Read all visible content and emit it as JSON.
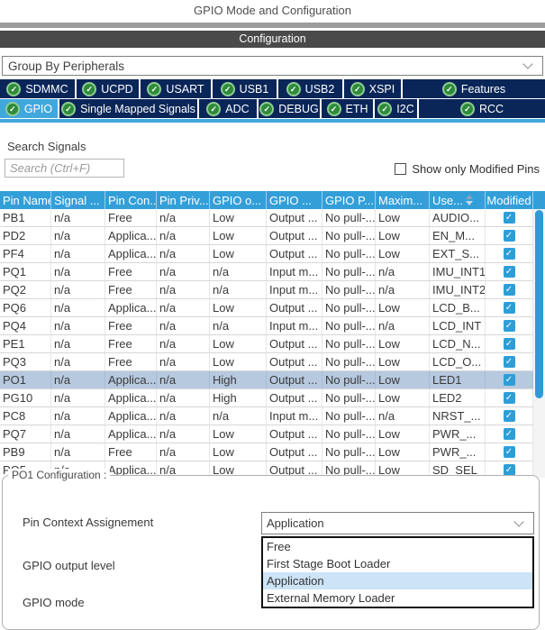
{
  "header": {
    "title": "GPIO Mode and Configuration",
    "section_title": "Configuration"
  },
  "group_by": {
    "value": "Group By Peripherals"
  },
  "tabs": {
    "row1": [
      {
        "label": "SDMMC"
      },
      {
        "label": "UCPD"
      },
      {
        "label": "USART"
      },
      {
        "label": "USB1"
      },
      {
        "label": "USB2"
      },
      {
        "label": "XSPI"
      },
      {
        "label": "Features"
      }
    ],
    "row2": [
      {
        "label": "GPIO",
        "active": true
      },
      {
        "label": "Single Mapped Signals"
      },
      {
        "label": "ADC"
      },
      {
        "label": "DEBUG"
      },
      {
        "label": "ETH"
      },
      {
        "label": "I2C"
      },
      {
        "label": "RCC"
      }
    ]
  },
  "search": {
    "label": "Search Signals",
    "placeholder": "Search (Ctrl+F)",
    "show_only_modified_label": "Show only Modified Pins",
    "show_only_modified_checked": false
  },
  "table": {
    "columns": [
      "Pin Name",
      "Signal ...",
      "Pin Con...",
      "Pin Priv...",
      "GPIO o...",
      "GPIO ...",
      "GPIO P...",
      "Maxim...",
      "Use...",
      "Modified"
    ],
    "sort_column_index": 8,
    "rows": [
      {
        "cells": [
          "PB1",
          "n/a",
          "Free",
          "n/a",
          "Low",
          "Output ...",
          "No pull-...",
          "Low",
          "AUDIO..."
        ],
        "modified": true,
        "selected": false
      },
      {
        "cells": [
          "PD2",
          "n/a",
          "Applica...",
          "n/a",
          "Low",
          "Output ...",
          "No pull-...",
          "Low",
          "EN_M..."
        ],
        "modified": true,
        "selected": false
      },
      {
        "cells": [
          "PF4",
          "n/a",
          "Applica...",
          "n/a",
          "Low",
          "Output ...",
          "No pull-...",
          "Low",
          "EXT_S..."
        ],
        "modified": true,
        "selected": false
      },
      {
        "cells": [
          "PQ1",
          "n/a",
          "Free",
          "n/a",
          "n/a",
          "Input m...",
          "No pull-...",
          "n/a",
          "IMU_INT1"
        ],
        "modified": true,
        "selected": false
      },
      {
        "cells": [
          "PQ2",
          "n/a",
          "Free",
          "n/a",
          "n/a",
          "Input m...",
          "No pull-...",
          "n/a",
          "IMU_INT2"
        ],
        "modified": true,
        "selected": false
      },
      {
        "cells": [
          "PQ6",
          "n/a",
          "Applica...",
          "n/a",
          "Low",
          "Output ...",
          "No pull-...",
          "Low",
          "LCD_B..."
        ],
        "modified": true,
        "selected": false
      },
      {
        "cells": [
          "PQ4",
          "n/a",
          "Free",
          "n/a",
          "n/a",
          "Input m...",
          "No pull-...",
          "n/a",
          "LCD_INT"
        ],
        "modified": true,
        "selected": false
      },
      {
        "cells": [
          "PE1",
          "n/a",
          "Free",
          "n/a",
          "Low",
          "Output ...",
          "No pull-...",
          "Low",
          "LCD_N..."
        ],
        "modified": true,
        "selected": false
      },
      {
        "cells": [
          "PQ3",
          "n/a",
          "Free",
          "n/a",
          "Low",
          "Output ...",
          "No pull-...",
          "Low",
          "LCD_O..."
        ],
        "modified": true,
        "selected": false
      },
      {
        "cells": [
          "PO1",
          "n/a",
          "Applica...",
          "n/a",
          "High",
          "Output ...",
          "No pull-...",
          "Low",
          "LED1"
        ],
        "modified": true,
        "selected": true
      },
      {
        "cells": [
          "PG10",
          "n/a",
          "Applica...",
          "n/a",
          "High",
          "Output ...",
          "No pull-...",
          "Low",
          "LED2"
        ],
        "modified": true,
        "selected": false
      },
      {
        "cells": [
          "PC8",
          "n/a",
          "Applica...",
          "n/a",
          "n/a",
          "Input m...",
          "No pull-...",
          "n/a",
          "NRST_..."
        ],
        "modified": true,
        "selected": false
      },
      {
        "cells": [
          "PQ7",
          "n/a",
          "Applica...",
          "n/a",
          "Low",
          "Output ...",
          "No pull-...",
          "Low",
          "PWR_..."
        ],
        "modified": true,
        "selected": false
      },
      {
        "cells": [
          "PB9",
          "n/a",
          "Free",
          "n/a",
          "Low",
          "Output ...",
          "No pull-...",
          "Low",
          "PWR_..."
        ],
        "modified": true,
        "selected": false
      },
      {
        "cells": [
          "PO5",
          "n/a",
          "Applica...",
          "n/a",
          "Low",
          "Output ...",
          "No pull-...",
          "Low",
          "SD_SEL"
        ],
        "modified": true,
        "selected": false
      }
    ]
  },
  "config_panel": {
    "legend": "PO1 Configuration :",
    "fields": [
      {
        "label": "Pin Context Assignement",
        "value": "Application"
      },
      {
        "label": "GPIO output level"
      },
      {
        "label": "GPIO mode"
      }
    ],
    "dropdown": {
      "options": [
        "Free",
        "First Stage Boot Loader",
        "Application",
        "External Memory Loader"
      ],
      "selected": "Application"
    }
  },
  "colors": {
    "accent_cyan": "#41a8dc",
    "tab_navy": "#0a2659",
    "table_header_blue": "#339fd9",
    "checkbox_blue": "#2d9ed8",
    "selected_row": "#b7c9df",
    "dropdown_highlight": "#cde3f6",
    "check_icon_green": "#2e8b3a"
  }
}
